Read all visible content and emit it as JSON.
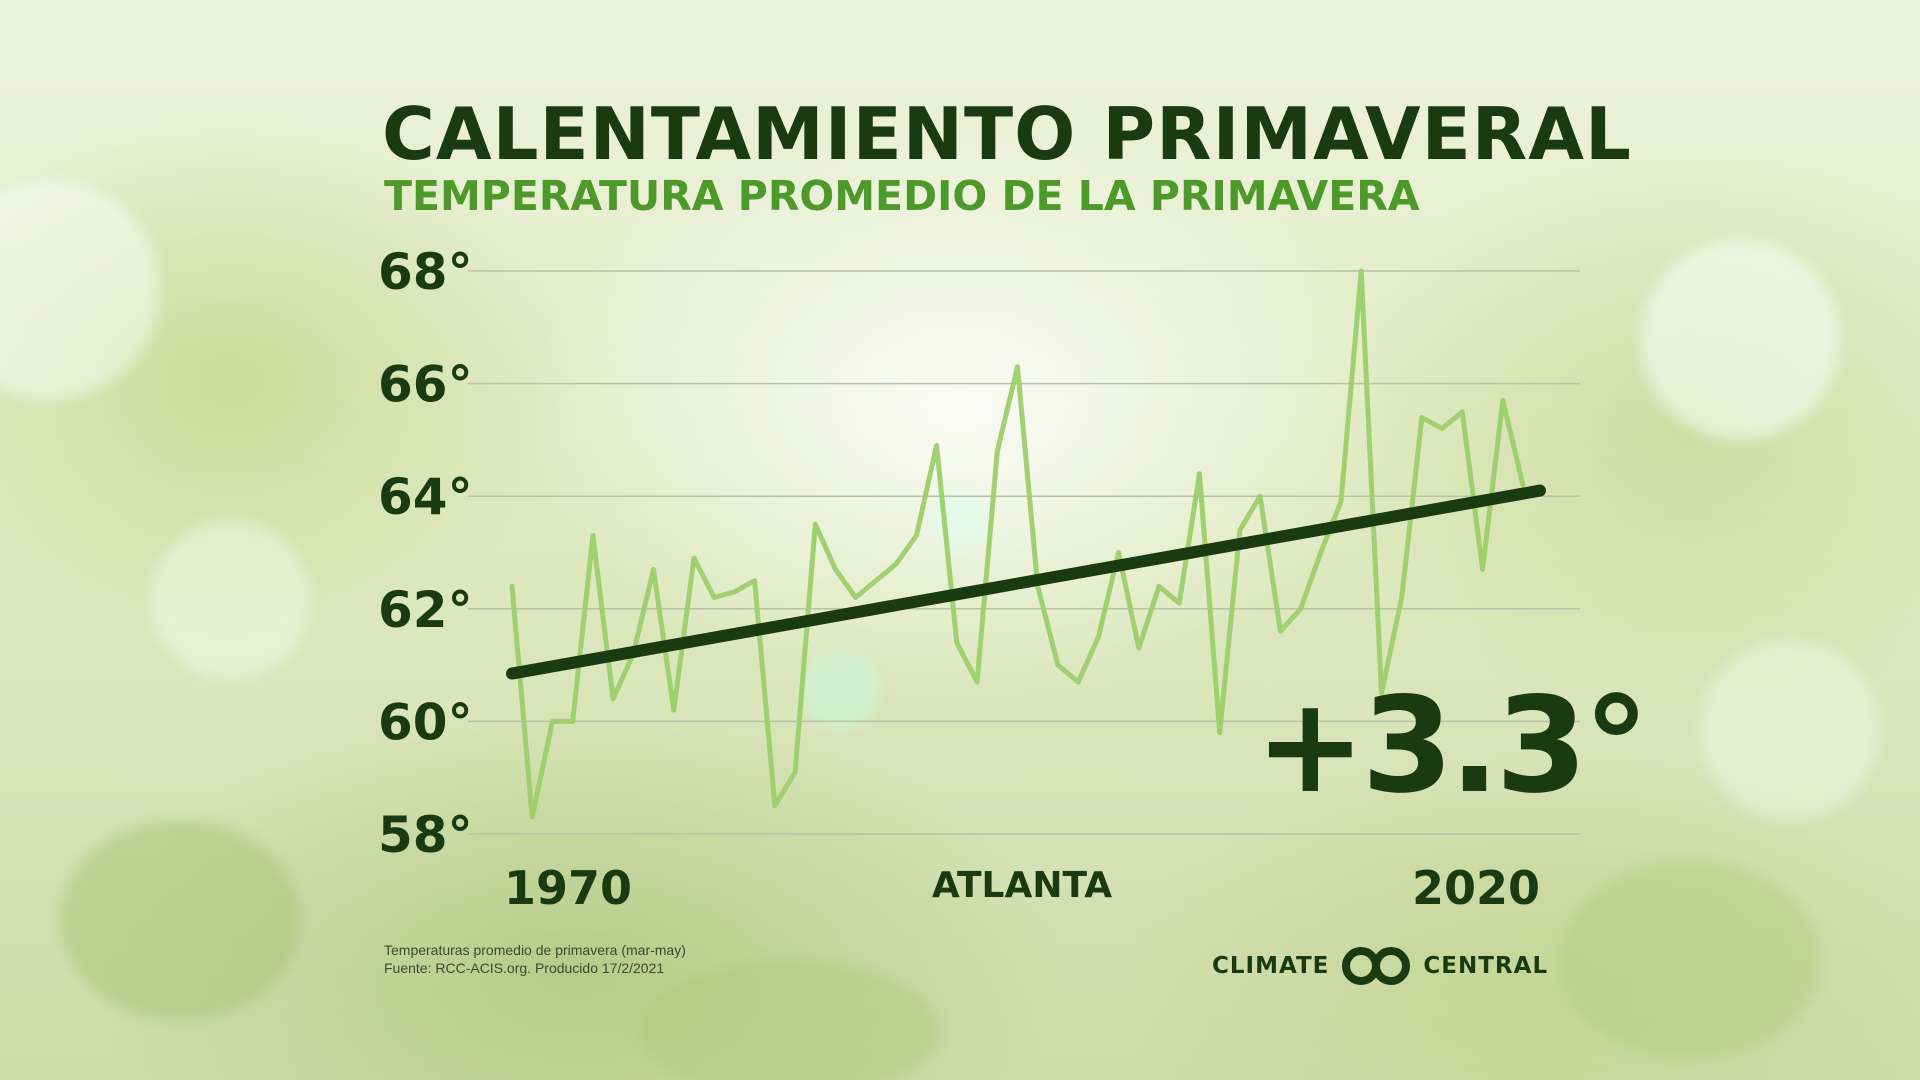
{
  "header": {
    "title": "CALENTAMIENTO PRIMAVERAL",
    "subtitle": "TEMPERATURA PROMEDIO DE LA PRIMAVERA"
  },
  "location": "ATLANTA",
  "change_label": "+3.3°",
  "footnote": {
    "line1": "Temperaturas promedio de primavera (mar-may)",
    "line2": "Fuente: RCC-ACIS.org. Producido 17/2/2021"
  },
  "logo": {
    "left_text": "CLIMATE",
    "right_text": "CENTRAL"
  },
  "colors": {
    "title": "#1a3a12",
    "subtitle": "#4d9a2a",
    "series_line": "#9ccf6a",
    "trend_line": "#1a3a12",
    "gridline": "#b9c2a8"
  },
  "chart_data": {
    "type": "line",
    "title": "CALENTAMIENTO PRIMAVERAL",
    "subtitle": "TEMPERATURA PROMEDIO DE LA PRIMAVERA",
    "xlabel": "",
    "ylabel": "",
    "xlim": [
      1970,
      2020
    ],
    "ylim": [
      58,
      68
    ],
    "grid": true,
    "x_tick_labels": [
      "1970",
      "2020"
    ],
    "y_ticks": [
      58,
      60,
      62,
      64,
      66,
      68
    ],
    "y_tick_labels": [
      "58°",
      "60°",
      "62°",
      "64°",
      "66°",
      "68°"
    ],
    "x": [
      1970,
      1971,
      1972,
      1973,
      1974,
      1975,
      1976,
      1977,
      1978,
      1979,
      1980,
      1981,
      1982,
      1983,
      1984,
      1985,
      1986,
      1987,
      1988,
      1989,
      1990,
      1991,
      1992,
      1993,
      1994,
      1995,
      1996,
      1997,
      1998,
      1999,
      2000,
      2001,
      2002,
      2003,
      2004,
      2005,
      2006,
      2007,
      2008,
      2009,
      2010,
      2011,
      2012,
      2013,
      2014,
      2015,
      2016,
      2017,
      2018,
      2019,
      2020
    ],
    "series": [
      {
        "values": [
          62.4,
          58.3,
          60.0,
          60.0,
          63.3,
          60.4,
          61.2,
          62.7,
          60.2,
          62.9,
          62.2,
          62.3,
          62.5,
          58.5,
          59.1,
          63.5,
          62.7,
          62.2,
          62.5,
          62.8,
          63.3,
          64.9,
          61.4,
          60.7,
          64.8,
          66.3,
          62.4,
          61.0,
          60.7,
          61.5,
          63.0,
          61.3,
          62.4,
          62.1,
          64.4,
          59.8,
          63.4,
          64.0,
          61.6,
          62.0,
          63.0,
          63.9,
          68.0,
          60.5,
          62.2,
          65.4,
          65.2,
          65.5,
          62.7,
          65.7,
          64.2
        ]
      }
    ],
    "trend": {
      "x": [
        1970,
        2020
      ],
      "y": [
        60.85,
        64.1
      ]
    }
  }
}
